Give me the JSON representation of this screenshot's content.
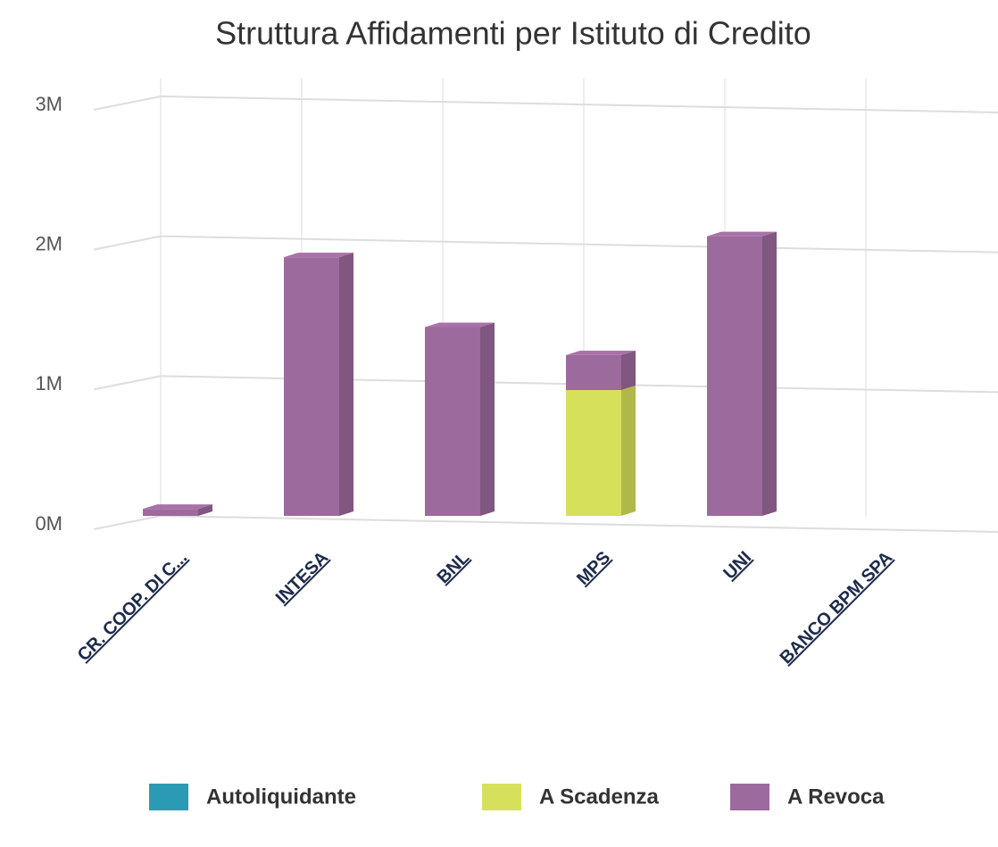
{
  "chart_data": {
    "type": "bar3d_stacked",
    "title": "Struttura Affidamenti per Istituto di Credito",
    "categories": [
      "CR. COOP. DI C...",
      "INTESA",
      "BNL",
      "MPS",
      "UNI",
      "BANCO BPM SPA"
    ],
    "series": [
      {
        "name": "Autoliquidante",
        "color": "#2a9bb3",
        "values": [
          0,
          0,
          0,
          0,
          0,
          0
        ]
      },
      {
        "name": "A Scadenza",
        "color": "#d7e05a",
        "values": [
          0,
          0,
          0,
          900000,
          0,
          0
        ]
      },
      {
        "name": "A Revoca",
        "color": "#9c6a9c",
        "values": [
          50000,
          1850000,
          1350000,
          250000,
          2000000,
          0
        ]
      }
    ],
    "ylim": [
      0,
      3000000
    ],
    "yticks": [
      {
        "value": 0,
        "label": "0M"
      },
      {
        "value": 1000000,
        "label": "1M"
      },
      {
        "value": 2000000,
        "label": "2M"
      },
      {
        "value": 3000000,
        "label": "3M"
      }
    ],
    "grid": true,
    "legend": "bottom"
  }
}
